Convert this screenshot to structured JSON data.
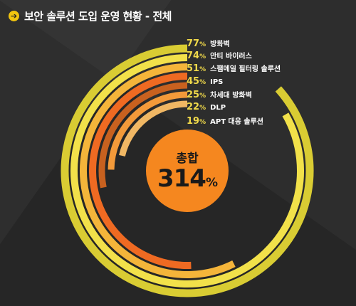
{
  "header": {
    "icon": "arrow-right-circle-icon",
    "title": "보안 솔루션 도입 운영 현황 - 전체"
  },
  "total": {
    "label": "총합",
    "value": "314",
    "unit": "%"
  },
  "chart_data": {
    "type": "radial-bar",
    "title": "보안 솔루션 도입 운영 현황 - 전체",
    "unit": "%",
    "categories": [
      "방화벽",
      "안티 바이러스",
      "스팸메일 필터링 솔루션",
      "IPS",
      "차세대 방화벽",
      "DLP",
      "APT 대응 솔루션"
    ],
    "values": [
      77,
      74,
      51,
      45,
      25,
      22,
      19
    ],
    "colors": [
      "#d9cc33",
      "#f2e14a",
      "#f4b53a",
      "#ef6a22",
      "#c8611f",
      "#f39a3a",
      "#f0b764"
    ],
    "total": 314
  }
}
